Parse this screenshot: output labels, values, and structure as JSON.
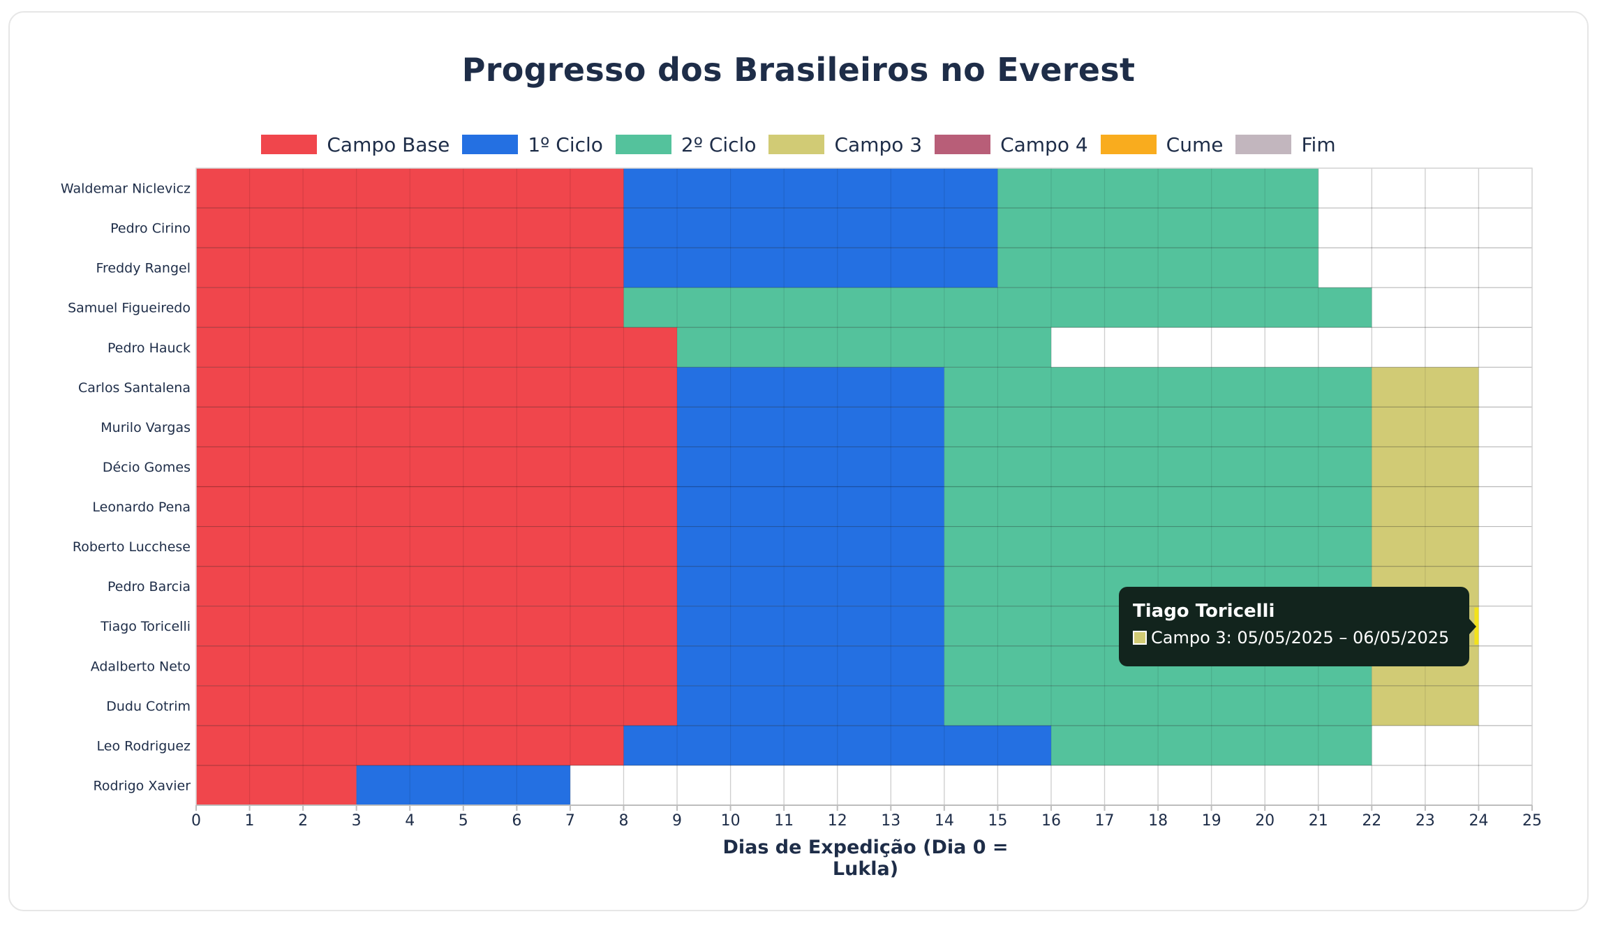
{
  "chart_data": {
    "type": "bar",
    "orientation": "horizontal-stacked",
    "title": "Progresso dos Brasileiros no Everest",
    "xlabel": "Dias de Expedição (Dia 0 = Lukla)",
    "xlim": [
      0,
      25
    ],
    "xticks": [
      0,
      1,
      2,
      3,
      4,
      5,
      6,
      7,
      8,
      9,
      10,
      11,
      12,
      13,
      14,
      15,
      16,
      17,
      18,
      19,
      20,
      21,
      22,
      23,
      24,
      25
    ],
    "grid": true,
    "legend_position": "top-center",
    "legend": [
      {
        "name": "Campo Base",
        "color": "#f0464c"
      },
      {
        "name": "1º Ciclo",
        "color": "#2470e2"
      },
      {
        "name": "2º Ciclo",
        "color": "#54c29c"
      },
      {
        "name": "Campo 3",
        "color": "#d1cb75"
      },
      {
        "name": "Campo 4",
        "color": "#b85e78"
      },
      {
        "name": "Cume",
        "color": "#f9ac1e"
      },
      {
        "name": "Fim",
        "color": "#c2b6be"
      }
    ],
    "climbers": [
      {
        "name": "Waldemar Niclevicz",
        "segments": [
          {
            "stage": "Campo Base",
            "start": 0,
            "end": 8
          },
          {
            "stage": "1º Ciclo",
            "start": 8,
            "end": 15
          },
          {
            "stage": "2º Ciclo",
            "start": 15,
            "end": 21
          }
        ]
      },
      {
        "name": "Pedro Cirino",
        "segments": [
          {
            "stage": "Campo Base",
            "start": 0,
            "end": 8
          },
          {
            "stage": "1º Ciclo",
            "start": 8,
            "end": 15
          },
          {
            "stage": "2º Ciclo",
            "start": 15,
            "end": 21
          }
        ]
      },
      {
        "name": "Freddy Rangel",
        "segments": [
          {
            "stage": "Campo Base",
            "start": 0,
            "end": 8
          },
          {
            "stage": "1º Ciclo",
            "start": 8,
            "end": 15
          },
          {
            "stage": "2º Ciclo",
            "start": 15,
            "end": 21
          }
        ]
      },
      {
        "name": "Samuel Figueiredo",
        "segments": [
          {
            "stage": "Campo Base",
            "start": 0,
            "end": 8
          },
          {
            "stage": "2º Ciclo",
            "start": 8,
            "end": 22
          }
        ]
      },
      {
        "name": "Pedro Hauck",
        "segments": [
          {
            "stage": "Campo Base",
            "start": 0,
            "end": 9
          },
          {
            "stage": "2º Ciclo",
            "start": 9,
            "end": 16
          }
        ]
      },
      {
        "name": "Carlos Santalena",
        "segments": [
          {
            "stage": "Campo Base",
            "start": 0,
            "end": 9
          },
          {
            "stage": "1º Ciclo",
            "start": 9,
            "end": 14
          },
          {
            "stage": "2º Ciclo",
            "start": 14,
            "end": 22
          },
          {
            "stage": "Campo 3",
            "start": 22,
            "end": 24
          }
        ]
      },
      {
        "name": "Murilo Vargas",
        "segments": [
          {
            "stage": "Campo Base",
            "start": 0,
            "end": 9
          },
          {
            "stage": "1º Ciclo",
            "start": 9,
            "end": 14
          },
          {
            "stage": "2º Ciclo",
            "start": 14,
            "end": 22
          },
          {
            "stage": "Campo 3",
            "start": 22,
            "end": 24
          }
        ]
      },
      {
        "name": "Décio Gomes",
        "segments": [
          {
            "stage": "Campo Base",
            "start": 0,
            "end": 9
          },
          {
            "stage": "1º Ciclo",
            "start": 9,
            "end": 14
          },
          {
            "stage": "2º Ciclo",
            "start": 14,
            "end": 22
          },
          {
            "stage": "Campo 3",
            "start": 22,
            "end": 24
          }
        ]
      },
      {
        "name": "Leonardo Pena",
        "segments": [
          {
            "stage": "Campo Base",
            "start": 0,
            "end": 9
          },
          {
            "stage": "1º Ciclo",
            "start": 9,
            "end": 14
          },
          {
            "stage": "2º Ciclo",
            "start": 14,
            "end": 22
          },
          {
            "stage": "Campo 3",
            "start": 22,
            "end": 24
          }
        ]
      },
      {
        "name": "Roberto Lucchese",
        "segments": [
          {
            "stage": "Campo Base",
            "start": 0,
            "end": 9
          },
          {
            "stage": "1º Ciclo",
            "start": 9,
            "end": 14
          },
          {
            "stage": "2º Ciclo",
            "start": 14,
            "end": 22
          },
          {
            "stage": "Campo 3",
            "start": 22,
            "end": 24
          }
        ]
      },
      {
        "name": "Pedro Barcia",
        "segments": [
          {
            "stage": "Campo Base",
            "start": 0,
            "end": 9
          },
          {
            "stage": "1º Ciclo",
            "start": 9,
            "end": 14
          },
          {
            "stage": "2º Ciclo",
            "start": 14,
            "end": 22
          },
          {
            "stage": "Campo 3",
            "start": 22,
            "end": 24
          }
        ]
      },
      {
        "name": "Tiago Toricelli",
        "segments": [
          {
            "stage": "Campo Base",
            "start": 0,
            "end": 9
          },
          {
            "stage": "1º Ciclo",
            "start": 9,
            "end": 14
          },
          {
            "stage": "2º Ciclo",
            "start": 14,
            "end": 22
          },
          {
            "stage": "Campo 3",
            "start": 22,
            "end": 24
          }
        ]
      },
      {
        "name": "Adalberto Neto",
        "segments": [
          {
            "stage": "Campo Base",
            "start": 0,
            "end": 9
          },
          {
            "stage": "1º Ciclo",
            "start": 9,
            "end": 14
          },
          {
            "stage": "2º Ciclo",
            "start": 14,
            "end": 22
          },
          {
            "stage": "Campo 3",
            "start": 22,
            "end": 24
          }
        ]
      },
      {
        "name": "Dudu Cotrim",
        "segments": [
          {
            "stage": "Campo Base",
            "start": 0,
            "end": 9
          },
          {
            "stage": "1º Ciclo",
            "start": 9,
            "end": 14
          },
          {
            "stage": "2º Ciclo",
            "start": 14,
            "end": 22
          },
          {
            "stage": "Campo 3",
            "start": 22,
            "end": 24
          }
        ]
      },
      {
        "name": "Leo Rodriguez",
        "segments": [
          {
            "stage": "Campo Base",
            "start": 0,
            "end": 8
          },
          {
            "stage": "1º Ciclo",
            "start": 8,
            "end": 16
          },
          {
            "stage": "2º Ciclo",
            "start": 16,
            "end": 22
          }
        ]
      },
      {
        "name": "Rodrigo Xavier",
        "segments": [
          {
            "stage": "Campo Base",
            "start": 0,
            "end": 3
          },
          {
            "stage": "1º Ciclo",
            "start": 3,
            "end": 7
          }
        ]
      }
    ],
    "tooltip": {
      "title": "Tiago Toricelli",
      "text": "Campo 3: 05/05/2025 – 06/05/2025",
      "color": "#d1cb75"
    }
  }
}
